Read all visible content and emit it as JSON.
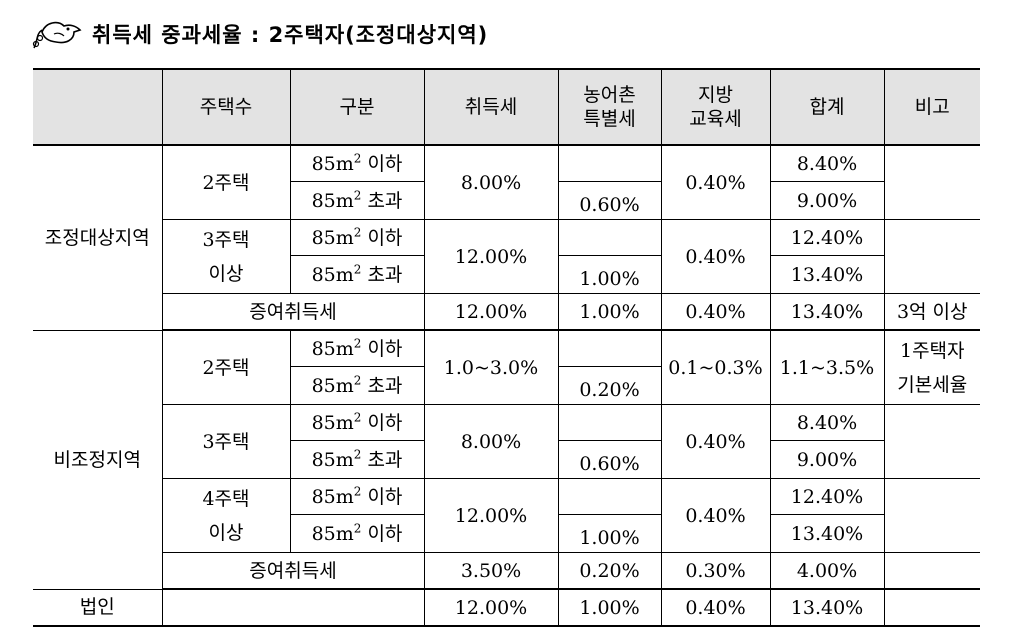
{
  "title": "취득세 중과세율 : 2주택자(조정대상지역)",
  "headers": {
    "blank": "",
    "count": "주택수",
    "division": "구분",
    "acq": "취득세",
    "rural_1": "농어촌",
    "rural_2": "특별세",
    "edu_1": "지방",
    "edu_2": "교육세",
    "total": "합계",
    "note": "비고"
  },
  "size_labels": {
    "under_prefix": "85m",
    "over_prefix": "85m",
    "exp": "2",
    "under": "이하",
    "over": "초과"
  },
  "regulated": {
    "region": "조정대상지역",
    "two": {
      "count": "2주택",
      "acq": "8.00%",
      "rural": "0.60%",
      "edu": "0.40%",
      "total_under": "8.40%",
      "total_over": "9.00%"
    },
    "three": {
      "count_1": "3주택",
      "count_2": "이상",
      "acq": "12.00%",
      "rural": "1.00%",
      "edu": "0.40%",
      "total_under": "12.40%",
      "total_over": "13.40%"
    },
    "gift": {
      "label": "증여취득세",
      "acq": "12.00%",
      "rural": "1.00%",
      "edu": "0.40%",
      "total": "13.40%",
      "note": "3억 이상"
    }
  },
  "non_regulated": {
    "region": "비조정지역",
    "two": {
      "count": "2주택",
      "acq": "1.0~3.0%",
      "rural": "0.20%",
      "edu": "0.1~0.3%",
      "total": "1.1~3.5%",
      "note_1": "1주택자",
      "note_2": "기본세율"
    },
    "three": {
      "count": "3주택",
      "acq": "8.00%",
      "rural": "0.60%",
      "edu": "0.40%",
      "total_under": "8.40%",
      "total_over": "9.00%"
    },
    "four": {
      "count_1": "4주택",
      "count_2": "이상",
      "acq": "12.00%",
      "rural": "1.00%",
      "edu": "0.40%",
      "total_under": "12.40%",
      "total_over": "13.40%"
    },
    "gift": {
      "label": "증여취득세",
      "acq": "3.50%",
      "rural": "0.20%",
      "edu": "0.30%",
      "total": "4.00%"
    }
  },
  "corporate": {
    "label": "법인",
    "acq": "12.00%",
    "rural": "1.00%",
    "edu": "0.40%",
    "total": "13.40%"
  }
}
